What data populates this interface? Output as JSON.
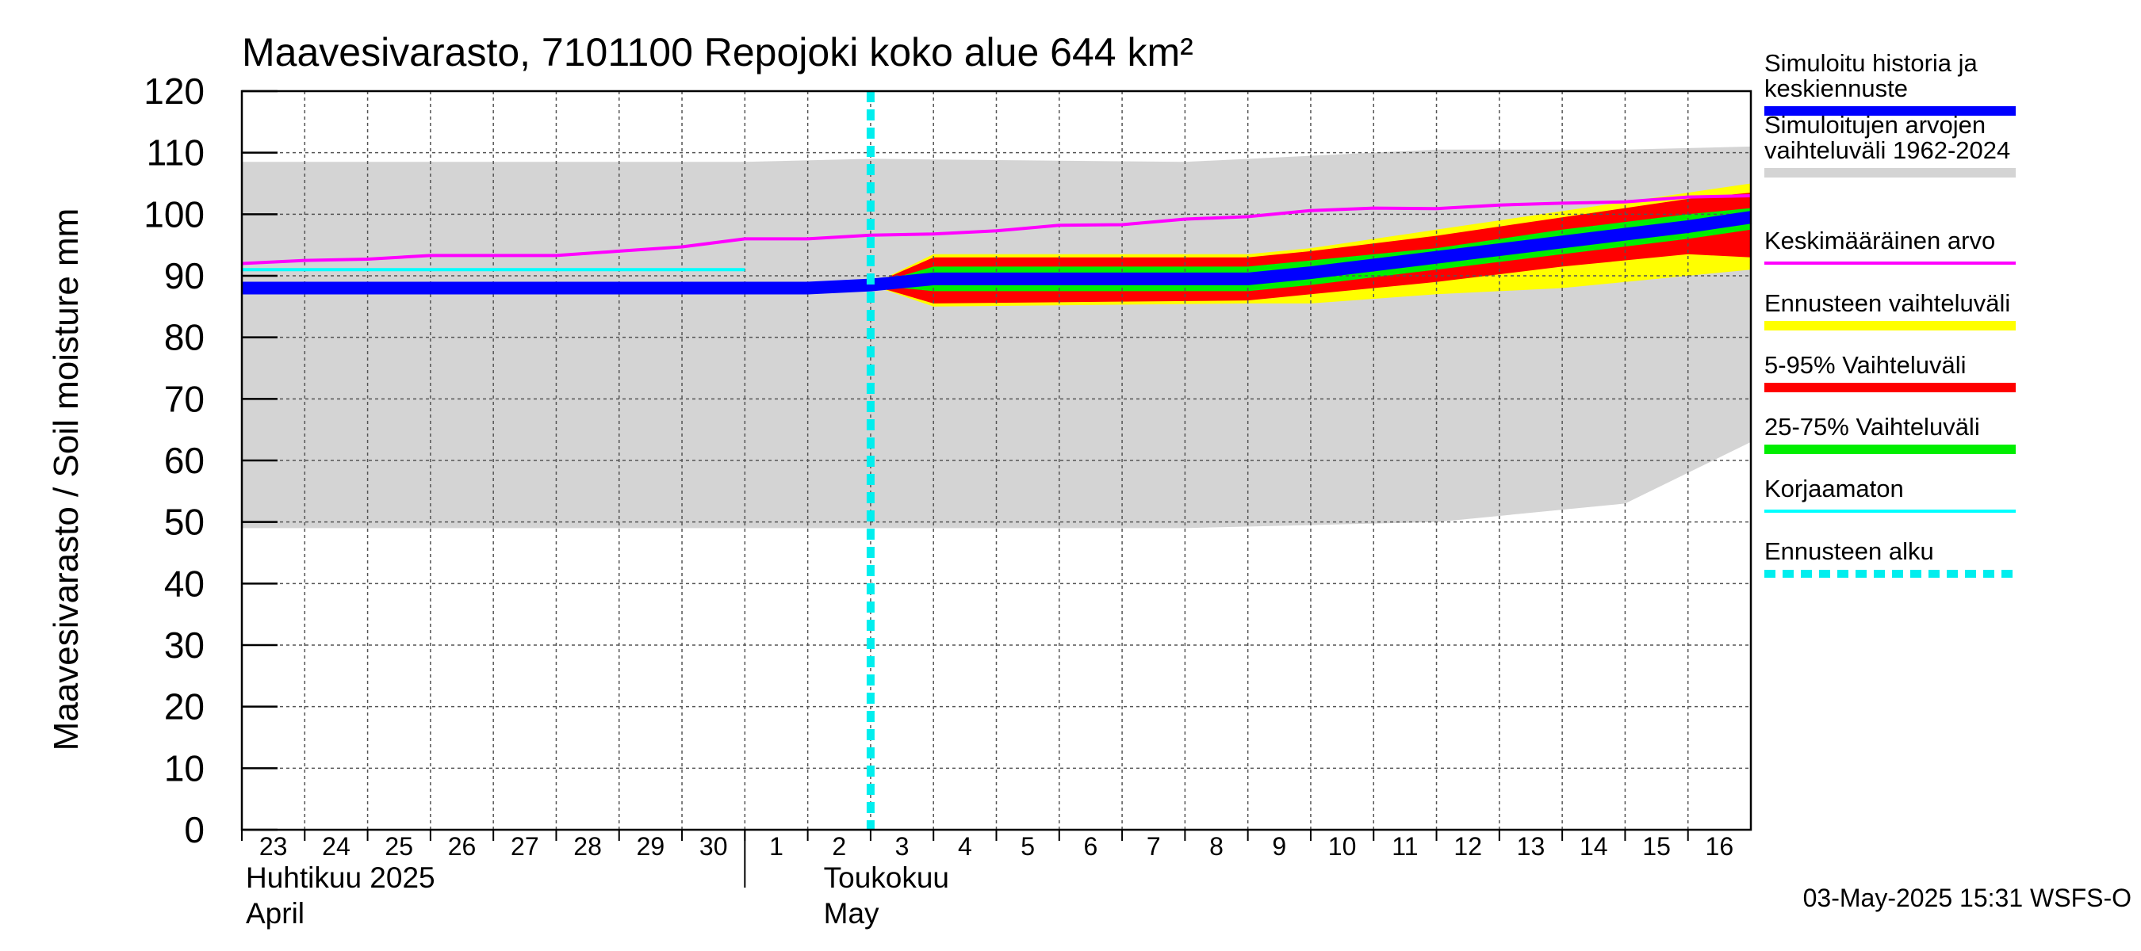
{
  "chart_data": {
    "type": "area",
    "title": "Maavesivarasto, 7101100 Repojoki koko alue 644 km²",
    "ylabel": "Maavesivarasto / Soil moisture   mm",
    "ylim": [
      0,
      120
    ],
    "yticks": [
      0,
      10,
      20,
      30,
      40,
      50,
      60,
      70,
      80,
      90,
      100,
      110,
      120
    ],
    "grid": true,
    "legend_position": "right",
    "x_days": [
      "23",
      "24",
      "25",
      "26",
      "27",
      "28",
      "29",
      "30",
      "1",
      "2",
      "3",
      "4",
      "5",
      "6",
      "7",
      "8",
      "9",
      "10",
      "11",
      "12",
      "13",
      "14",
      "15",
      "16"
    ],
    "month_labels": [
      {
        "line1": "Huhtikuu  2025",
        "line2": "April"
      },
      {
        "line1": "Toukokuu",
        "line2": "May"
      }
    ],
    "forecast_start": "2025-05-03",
    "timestamp": "03-May-2025 15:31 WSFS-O",
    "bands": {
      "historical_range": {
        "dates": [
          "2025-04-23",
          "2025-05-01",
          "2025-05-03",
          "2025-05-08",
          "2025-05-12",
          "2025-05-15",
          "2025-05-17"
        ],
        "low": [
          49,
          49,
          49,
          49,
          50,
          53,
          63
        ],
        "high": [
          108.5,
          108.5,
          109,
          108.5,
          110.5,
          110.5,
          111
        ]
      },
      "forecast_range": {
        "dates": [
          "2025-05-03",
          "2025-05-04",
          "2025-05-09",
          "2025-05-10",
          "2025-05-12",
          "2025-05-14",
          "2025-05-16",
          "2025-05-17"
        ],
        "low": [
          88.5,
          85,
          85.5,
          85.5,
          87,
          88,
          90,
          91
        ],
        "high": [
          88.5,
          93.5,
          93.5,
          94.5,
          97.5,
          100.5,
          103.5,
          105
        ]
      },
      "p5_95": {
        "dates": [
          "2025-05-03",
          "2025-05-04",
          "2025-05-09",
          "2025-05-10",
          "2025-05-12",
          "2025-05-14",
          "2025-05-16",
          "2025-05-17"
        ],
        "low": [
          88.5,
          85.5,
          86,
          87,
          89,
          91.5,
          93.5,
          93
        ],
        "high": [
          88.5,
          93,
          93,
          94,
          96.5,
          99.5,
          102.5,
          103.5
        ]
      },
      "p25_75": {
        "dates": [
          "2025-05-03",
          "2025-05-04",
          "2025-05-09",
          "2025-05-10",
          "2025-05-12",
          "2025-05-14",
          "2025-05-16",
          "2025-05-17"
        ],
        "low": [
          88.5,
          87.5,
          87.5,
          88.5,
          91,
          93.5,
          96,
          97.5
        ],
        "high": [
          88.5,
          91.5,
          91.5,
          92.5,
          94.5,
          97.5,
          100,
          101
        ]
      }
    },
    "series": [
      {
        "name": "Simuloitu historia ja keskiennuste",
        "dates": [
          "2025-04-23",
          "2025-05-02",
          "2025-05-03",
          "2025-05-04",
          "2025-05-09",
          "2025-05-10",
          "2025-05-12",
          "2025-05-14",
          "2025-05-16",
          "2025-05-17"
        ],
        "values": [
          88,
          88,
          88.5,
          89.5,
          89.5,
          90.5,
          93,
          95.5,
          98,
          99.5
        ]
      },
      {
        "name": "Keskimääräinen arvo",
        "dates": [
          "2025-04-23",
          "2025-04-24",
          "2025-04-25",
          "2025-04-26",
          "2025-04-27",
          "2025-04-28",
          "2025-04-29",
          "2025-04-30",
          "2025-05-01",
          "2025-05-02",
          "2025-05-03",
          "2025-05-04",
          "2025-05-05",
          "2025-05-06",
          "2025-05-07",
          "2025-05-08",
          "2025-05-09",
          "2025-05-10",
          "2025-05-11",
          "2025-05-12",
          "2025-05-13",
          "2025-05-14",
          "2025-05-15",
          "2025-05-16",
          "2025-05-17"
        ],
        "values": [
          92,
          92.5,
          92.7,
          93.3,
          93.3,
          93.3,
          94,
          94.7,
          96,
          96,
          96.6,
          96.8,
          97.3,
          98.2,
          98.3,
          99.2,
          99.6,
          100.6,
          101,
          100.9,
          101.5,
          101.8,
          102,
          102.8,
          103
        ]
      },
      {
        "name": "Korjaamaton",
        "dates": [
          "2025-04-23",
          "2025-05-01"
        ],
        "values": [
          91,
          91
        ]
      }
    ],
    "legend": [
      {
        "label": "Simuloitu historia ja keskiennuste",
        "color": "#0000ff",
        "style": "thick"
      },
      {
        "label": "Simuloitujen arvojen vaihteluväli 1962-2024",
        "color": "#d4d4d4",
        "style": "thick"
      },
      {
        "label": "Keskimääräinen arvo",
        "color": "#ff00ff",
        "style": "thin"
      },
      {
        "label": "Ennusteen vaihteluväli",
        "color": "#ffff00",
        "style": "thick"
      },
      {
        "label": "5-95% Vaihteluväli",
        "color": "#ff0000",
        "style": "thick"
      },
      {
        "label": "25-75% Vaihteluväli",
        "color": "#00ee00",
        "style": "thick"
      },
      {
        "label": "Korjaamaton",
        "color": "#00ffff",
        "style": "thin"
      },
      {
        "label": "Ennusteen alku",
        "color": "#00eeee",
        "style": "dashed"
      }
    ]
  }
}
